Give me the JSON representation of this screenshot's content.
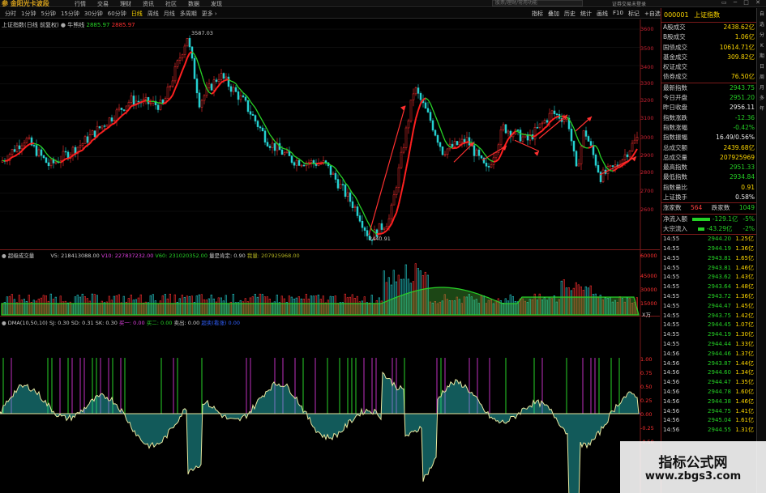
{
  "topbar": {
    "logo": "参 金阳光卡波段",
    "menu": [
      "行情",
      "交易",
      "理财",
      "资讯",
      "社区",
      "数据",
      "发现"
    ],
    "search_placeholder": "股票/理财/常用功能",
    "login": "证券交易未登录",
    "window_buttons": "▭ ─ □ ✕"
  },
  "periodbar": {
    "periods": [
      "分时",
      "1分钟",
      "5分钟",
      "15分钟",
      "30分钟",
      "60分钟",
      "日线",
      "周线",
      "月线",
      "多周期",
      "更多 ›"
    ],
    "active_period": "日线",
    "tools": [
      "指标",
      "叠加",
      "历史",
      "统计",
      "画线",
      "F10",
      "标记",
      "+自选",
      "返回"
    ]
  },
  "main_chart": {
    "title": "上证指数(日线 前复权)",
    "indicator_name": "牛熊线",
    "value_green": "2885.97",
    "value_red": "2885.97",
    "high_label": "3587.03",
    "low_label": "2440.91",
    "y_ticks": [
      "3600",
      "3500",
      "3400",
      "3300",
      "3200",
      "3100",
      "3000",
      "2900",
      "2800",
      "2700",
      "2600"
    ]
  },
  "volume_panel": {
    "title": "超级成交量",
    "v5": "V5: 218413088.00",
    "v10": "V10: 227837232.00",
    "v60": "V60: 231020352.00",
    "ratio": "量是肯定: 0.90",
    "vol": "我量: 207925968.00",
    "y_ticks": [
      "60000",
      "45000",
      "30000",
      "15000"
    ],
    "unit": "X万"
  },
  "dma_panel": {
    "title": "DMA(10,50,10)",
    "sj": "SJ: 0.30",
    "sd": "SD: 0.31",
    "sk": "SK: 0.30",
    "buy1": "买一: 0.00",
    "buy2": "买二: 0.00",
    "sell": "卖出: 0.00",
    "extra": "超卖(看涨) 0.00",
    "y_ticks": [
      "1.00",
      "0.75",
      "0.50",
      "0.25",
      "0.00",
      "-0.25",
      "-0.50"
    ]
  },
  "info_panel": {
    "code": "000001",
    "name": "上证指数",
    "stats": [
      {
        "k": "A股成交",
        "v": "2438.62亿",
        "c": "yellow"
      },
      {
        "k": "B股成交",
        "v": "1.06亿",
        "c": "yellow"
      },
      {
        "k": "国债成交",
        "v": "10614.71亿",
        "c": "yellow"
      },
      {
        "k": "基金成交",
        "v": "309.82亿",
        "c": "yellow"
      },
      {
        "k": "权证成交",
        "v": "",
        "c": "yellow"
      },
      {
        "k": "债券成交",
        "v": "76.50亿",
        "c": "yellow"
      }
    ],
    "quotes": [
      {
        "k": "最新指数",
        "v": "2943.75",
        "c": "green"
      },
      {
        "k": "今日开盘",
        "v": "2951.20",
        "c": "green"
      },
      {
        "k": "昨日收盘",
        "v": "2956.11",
        "c": "white"
      },
      {
        "k": "指数涨跌",
        "v": "-12.36",
        "c": "green"
      },
      {
        "k": "指数涨幅",
        "v": "-0.42%",
        "c": "green"
      },
      {
        "k": "指数振幅",
        "v": "16.49/0.56%",
        "c": "white"
      },
      {
        "k": "总成交额",
        "v": "2439.68亿",
        "c": "yellow"
      },
      {
        "k": "总成交量",
        "v": "207925969",
        "c": "yellow"
      },
      {
        "k": "最高指数",
        "v": "2951.33",
        "c": "green"
      },
      {
        "k": "最低指数",
        "v": "2934.84",
        "c": "green"
      },
      {
        "k": "指数量比",
        "v": "0.91",
        "c": "yellow"
      },
      {
        "k": "上证换手",
        "v": "0.58%",
        "c": "white"
      }
    ],
    "breadth": {
      "up_label": "涨家数",
      "up": "564",
      "down_label": "跌家数",
      "down": "1049"
    },
    "flows": [
      {
        "k": "净流入额",
        "v": "-129.1亿",
        "pct": "-5%"
      },
      {
        "k": "大宗流入",
        "v": "-43.29亿",
        "pct": "-2%"
      }
    ],
    "ticks": [
      {
        "t": "14:55",
        "p": "2944.20",
        "v": "1.25亿"
      },
      {
        "t": "14:55",
        "p": "2944.19",
        "v": "1.36亿"
      },
      {
        "t": "14:55",
        "p": "2943.81",
        "v": "1.65亿"
      },
      {
        "t": "14:55",
        "p": "2943.81",
        "v": "1.46亿"
      },
      {
        "t": "14:55",
        "p": "2943.62",
        "v": "1.43亿"
      },
      {
        "t": "14:55",
        "p": "2943.64",
        "v": "1.48亿"
      },
      {
        "t": "14:55",
        "p": "2943.72",
        "v": "1.36亿"
      },
      {
        "t": "14:55",
        "p": "2944.47",
        "v": "1.45亿"
      },
      {
        "t": "14:55",
        "p": "2943.75",
        "v": "1.42亿"
      },
      {
        "t": "14:55",
        "p": "2944.45",
        "v": "1.07亿"
      },
      {
        "t": "14:55",
        "p": "2944.19",
        "v": "1.30亿"
      },
      {
        "t": "14:55",
        "p": "2944.44",
        "v": "1.33亿"
      },
      {
        "t": "14:56",
        "p": "2944.46",
        "v": "1.37亿"
      },
      {
        "t": "14:56",
        "p": "2943.87",
        "v": "1.44亿"
      },
      {
        "t": "14:56",
        "p": "2944.60",
        "v": "1.34亿"
      },
      {
        "t": "14:56",
        "p": "2944.47",
        "v": "1.35亿"
      },
      {
        "t": "14:56",
        "p": "2944.78",
        "v": "1.60亿"
      },
      {
        "t": "14:56",
        "p": "2944.38",
        "v": "1.46亿"
      },
      {
        "t": "14:56",
        "p": "2944.75",
        "v": "1.41亿"
      },
      {
        "t": "14:56",
        "p": "2945.04",
        "v": "1.61亿"
      },
      {
        "t": "14:56",
        "p": "2944.55",
        "v": "1.31亿"
      }
    ]
  },
  "sidebar": [
    "自",
    "选",
    "分",
    "K",
    "期",
    "日",
    "周",
    "月",
    "多",
    "年"
  ],
  "watermark": {
    "line1": "指标公式网",
    "line2": "www.zbgs3.com"
  },
  "colors": {
    "up": "#ff3030",
    "down": "#25d0d0",
    "ma": "#27d327",
    "panel_border": "#7a1a1a",
    "accent": "#ffd800"
  }
}
